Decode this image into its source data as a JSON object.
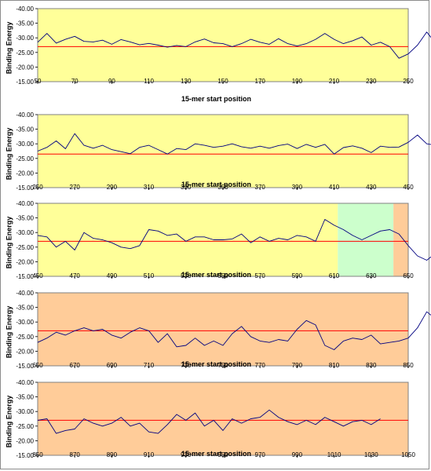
{
  "colors": {
    "yellow": "#ffff99",
    "green": "#ccffcc",
    "orange": "#ffcc99",
    "line": "#000080",
    "threshold": "#ff0000",
    "frame": "#8c8c8c"
  },
  "chart_data": [
    {
      "type": "line",
      "ylabel": "Binding Energy",
      "xlabel": "15-mer start position",
      "xlim": [
        50,
        250
      ],
      "ylim": [
        -40,
        -15
      ],
      "y_reversed": true,
      "xticks": [
        "50",
        "70",
        "90",
        "110",
        "130",
        "150",
        "170",
        "190",
        "210",
        "230",
        "250"
      ],
      "yticks": [
        "-40.00",
        "-35.00",
        "-30.00",
        "-25.00",
        "-20.00",
        "-15.00"
      ],
      "threshold": -27,
      "background_regions": [
        {
          "from": 50,
          "to": 250,
          "color": "yellow"
        }
      ],
      "series": [
        {
          "x_start": 50,
          "x_step": 5,
          "values": [
            -28.5,
            -31.5,
            -28.2,
            -29.5,
            -30.5,
            -28.8,
            -28.6,
            -29.2,
            -27.8,
            -29.4,
            -28.6,
            -27.6,
            -28.1,
            -27.5,
            -26.8,
            -27.4,
            -27.0,
            -28.6,
            -29.6,
            -28.3,
            -28.0,
            -27.0,
            -28.0,
            -29.5,
            -28.5,
            -27.8,
            -29.7,
            -28.0,
            -27.2,
            -28.0,
            -29.5,
            -31.5,
            -29.5,
            -28.0,
            -29.0,
            -30.3,
            -27.5,
            -28.5,
            -27.0,
            -23.0,
            -24.5,
            -27.5,
            -32.0,
            -28.0
          ]
        }
      ]
    },
    {
      "type": "line",
      "ylabel": "Binding Energy",
      "xlabel": "15-mer start position",
      "xlim": [
        250,
        450
      ],
      "ylim": [
        -40,
        -15
      ],
      "y_reversed": true,
      "xticks": [
        "250",
        "270",
        "290",
        "310",
        "330",
        "350",
        "370",
        "390",
        "410",
        "430",
        "450"
      ],
      "yticks": [
        "-40.00",
        "-35.00",
        "-30.00",
        "-25.00",
        "-20.00",
        "-15.00"
      ],
      "threshold": -26.5,
      "background_regions": [
        {
          "from": 250,
          "to": 450,
          "color": "yellow"
        }
      ],
      "series": [
        {
          "x_start": 250,
          "x_step": 5,
          "values": [
            -27.5,
            -28.8,
            -31.0,
            -28.3,
            -33.5,
            -29.5,
            -28.5,
            -29.5,
            -28.0,
            -27.3,
            -26.6,
            -28.8,
            -29.5,
            -28.0,
            -26.5,
            -28.4,
            -28.0,
            -30.0,
            -29.5,
            -28.8,
            -29.2,
            -30.0,
            -29.0,
            -28.5,
            -29.2,
            -28.5,
            -29.4,
            -29.9,
            -28.4,
            -29.8,
            -28.8,
            -29.8,
            -26.5,
            -28.7,
            -29.3,
            -28.5,
            -27.0,
            -29.2,
            -28.8,
            -28.9,
            -30.5,
            -33.0,
            -30.0,
            -29.5,
            -29.0
          ]
        }
      ]
    },
    {
      "type": "line",
      "ylabel": "Binding Energy",
      "xlabel": "15-mer start position",
      "xlim": [
        450,
        650
      ],
      "ylim": [
        -40,
        -15
      ],
      "y_reversed": true,
      "xticks": [
        "450",
        "470",
        "490",
        "510",
        "530",
        "550",
        "570",
        "590",
        "610",
        "630",
        "650"
      ],
      "yticks": [
        "-40.00",
        "-35.00",
        "-30.00",
        "-25.00",
        "-20.00",
        "-15.00"
      ],
      "threshold": -27,
      "background_regions": [
        {
          "from": 450,
          "to": 612,
          "color": "yellow"
        },
        {
          "from": 612,
          "to": 642,
          "color": "green"
        },
        {
          "from": 642,
          "to": 650,
          "color": "orange"
        }
      ],
      "series": [
        {
          "x_start": 450,
          "x_step": 5,
          "values": [
            -29.0,
            -28.5,
            -25.0,
            -27.0,
            -24.0,
            -30.0,
            -28.0,
            -27.5,
            -26.5,
            -25.0,
            -24.5,
            -25.5,
            -31.0,
            -30.5,
            -29.0,
            -29.5,
            -27.0,
            -28.5,
            -28.5,
            -27.5,
            -27.5,
            -27.8,
            -29.5,
            -26.5,
            -28.5,
            -27.0,
            -28.0,
            -27.5,
            -29.0,
            -28.5,
            -27.0,
            -34.5,
            -32.5,
            -31.0,
            -29.0,
            -27.5,
            -29.0,
            -30.5,
            -31.0,
            -29.5,
            -25.5,
            -22.0,
            -20.5,
            -23.0,
            -24.0
          ]
        }
      ]
    },
    {
      "type": "line",
      "ylabel": "Binding Energy",
      "xlabel": "15-mer start position",
      "xlim": [
        650,
        850
      ],
      "ylim": [
        -40,
        -15
      ],
      "y_reversed": true,
      "xticks": [
        "650",
        "670",
        "690",
        "710",
        "730",
        "750",
        "770",
        "790",
        "810",
        "830",
        "850"
      ],
      "yticks": [
        "-40.00",
        "-35.00",
        "-30.00",
        "-25.00",
        "-20.00",
        "-15.00"
      ],
      "threshold": -27,
      "background_regions": [
        {
          "from": 650,
          "to": 850,
          "color": "orange"
        }
      ],
      "series": [
        {
          "x_start": 650,
          "x_step": 5,
          "values": [
            -23.0,
            -24.5,
            -26.5,
            -25.5,
            -27.0,
            -28.0,
            -27.0,
            -27.5,
            -25.5,
            -24.5,
            -26.5,
            -28.0,
            -27.0,
            -23.0,
            -26.0,
            -21.5,
            -22.0,
            -24.5,
            -22.0,
            -23.5,
            -22.0,
            -26.0,
            -28.5,
            -25.0,
            -23.5,
            -23.0,
            -24.0,
            -23.5,
            -27.5,
            -30.5,
            -29.0,
            -22.0,
            -20.5,
            -23.5,
            -24.5,
            -24.0,
            -25.5,
            -22.5,
            -23.0,
            -23.5,
            -24.5,
            -28.0,
            -33.5,
            -31.0,
            -27.5
          ]
        }
      ]
    },
    {
      "type": "line",
      "ylabel": "Binding Energy",
      "xlabel": "15-mer start position",
      "xlim": [
        850,
        1050
      ],
      "ylim": [
        -40,
        -15
      ],
      "y_reversed": true,
      "xticks": [
        "850",
        "870",
        "890",
        "910",
        "930",
        "950",
        "970",
        "990",
        "1010",
        "1030",
        "1050"
      ],
      "yticks": [
        "-40.00",
        "-35.00",
        "-30.00",
        "-25.00",
        "-20.00",
        "-15.00"
      ],
      "threshold": -27,
      "background_regions": [
        {
          "from": 850,
          "to": 1050,
          "color": "orange"
        }
      ],
      "series": [
        {
          "x_start": 850,
          "x_step": 5,
          "values": [
            -27.0,
            -27.5,
            -22.5,
            -23.5,
            -24.0,
            -27.5,
            -26.0,
            -25.0,
            -26.0,
            -28.0,
            -25.0,
            -26.0,
            -23.0,
            -22.5,
            -25.5,
            -29.0,
            -27.0,
            -29.5,
            -25.0,
            -27.0,
            -23.5,
            -27.5,
            -26.0,
            -27.5,
            -28.0,
            -30.5,
            -28.0,
            -26.5,
            -25.5,
            -27.0,
            -25.5,
            -28.0,
            -26.5,
            -25.0,
            -26.5,
            -27.0,
            -25.5,
            -27.5
          ]
        }
      ]
    }
  ]
}
